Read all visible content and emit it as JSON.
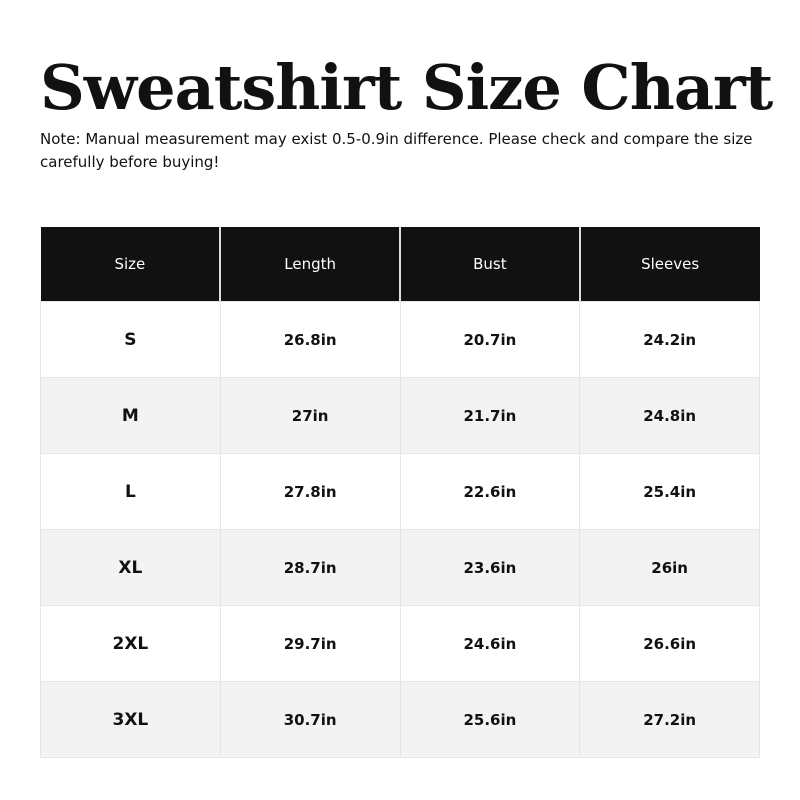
{
  "title": "Sweatshirt Size Chart",
  "note": "Note: Manual measurement may exist 0.5-0.9in difference. Please check and compare the size carefully before buying!",
  "table": {
    "headers": [
      "Size",
      "Length",
      "Bust",
      "Sleeves"
    ],
    "rows": [
      [
        "S",
        "26.8in",
        "20.7in",
        "24.2in"
      ],
      [
        "M",
        "27in",
        "21.7in",
        "24.8in"
      ],
      [
        "L",
        "27.8in",
        "22.6in",
        "25.4in"
      ],
      [
        "XL",
        "28.7in",
        "23.6in",
        "26in"
      ],
      [
        "2XL",
        "29.7in",
        "24.6in",
        "26.6in"
      ],
      [
        "3XL",
        "30.7in",
        "25.6in",
        "27.2in"
      ]
    ]
  },
  "colors": {
    "header_bg": "#111111",
    "alt_row_bg": "#f3f3f3"
  }
}
